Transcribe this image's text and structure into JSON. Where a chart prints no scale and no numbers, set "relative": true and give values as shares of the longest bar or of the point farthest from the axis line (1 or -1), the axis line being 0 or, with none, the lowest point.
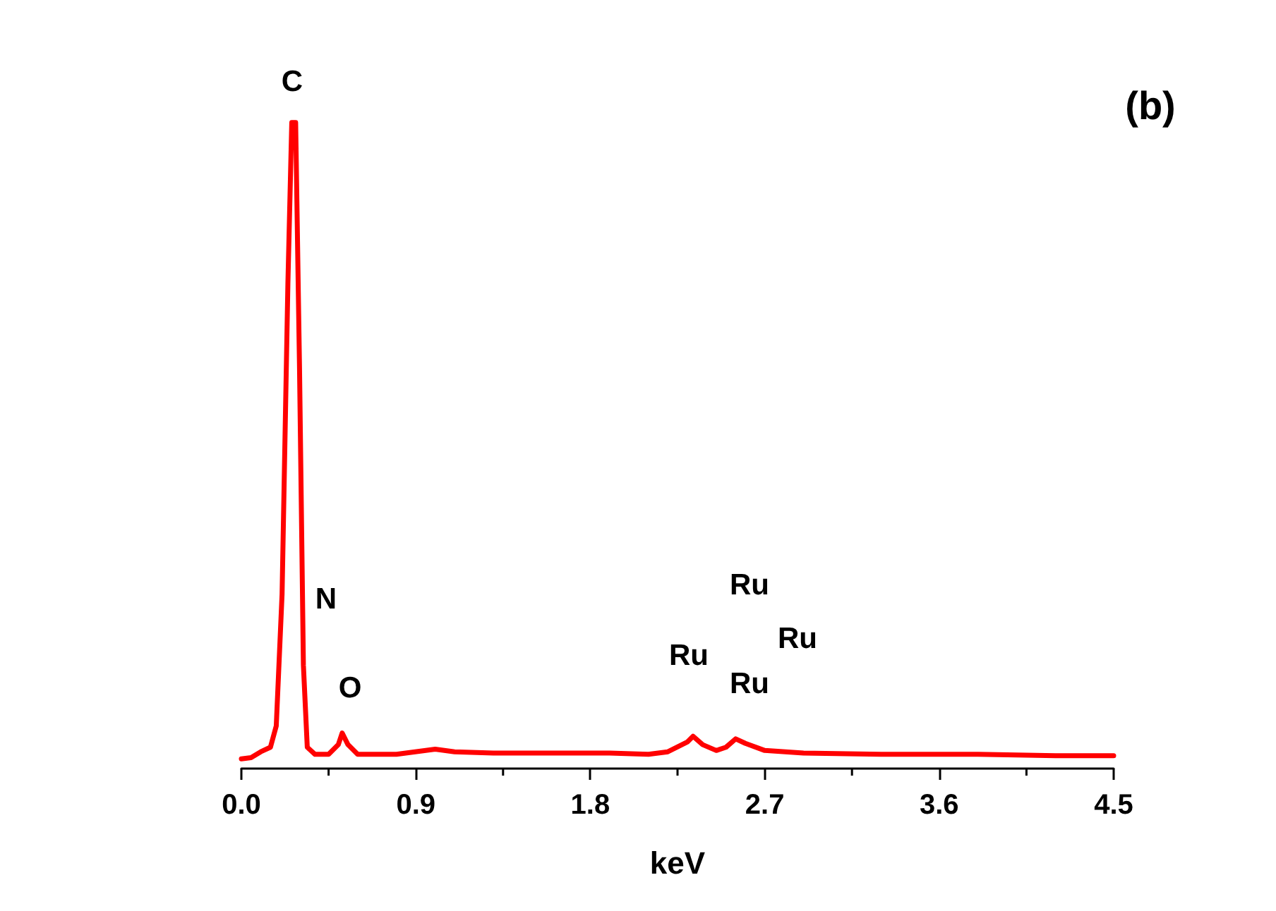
{
  "chart_data": {
    "type": "line",
    "relative": true,
    "xlabel": "keV",
    "xlim": [
      0,
      4.5
    ],
    "xticks": [
      {
        "value": 0,
        "label": "0.0"
      },
      {
        "value": 0.9,
        "label": "0.9"
      },
      {
        "value": 1.8,
        "label": "1.8"
      },
      {
        "value": 2.7,
        "label": "2.7"
      },
      {
        "value": 3.6,
        "label": "3.6"
      },
      {
        "value": 4.5,
        "label": "4.5"
      }
    ],
    "x": [
      0,
      0.05,
      0.1,
      0.15,
      0.18,
      0.21,
      0.24,
      0.26,
      0.28,
      0.3,
      0.32,
      0.34,
      0.38,
      0.45,
      0.5,
      0.52,
      0.55,
      0.6,
      0.8,
      1.0,
      1.1,
      1.3,
      1.6,
      1.9,
      2.1,
      2.2,
      2.3,
      2.33,
      2.38,
      2.45,
      2.5,
      2.55,
      2.6,
      2.7,
      2.9,
      3.3,
      3.8,
      4.2,
      4.5
    ],
    "series": [
      {
        "color": "#ff0000",
        "values": [
          0.015,
          0.017,
          0.026,
          0.033,
          0.066,
          0.27,
          0.75,
          1,
          1,
          0.62,
          0.16,
          0.033,
          0.022,
          0.022,
          0.037,
          0.055,
          0.037,
          0.022,
          0.022,
          0.03,
          0.026,
          0.024,
          0.024,
          0.024,
          0.022,
          0.026,
          0.041,
          0.05,
          0.037,
          0.028,
          0.033,
          0.046,
          0.039,
          0.028,
          0.024,
          0.022,
          0.022,
          0.02,
          0.02
        ]
      }
    ],
    "marker": "none",
    "line_style": "solid",
    "grid": false,
    "annotations": [
      "C",
      "N",
      "O",
      "Ru",
      "Ru",
      "Ru",
      "Ru",
      "(b)"
    ]
  }
}
